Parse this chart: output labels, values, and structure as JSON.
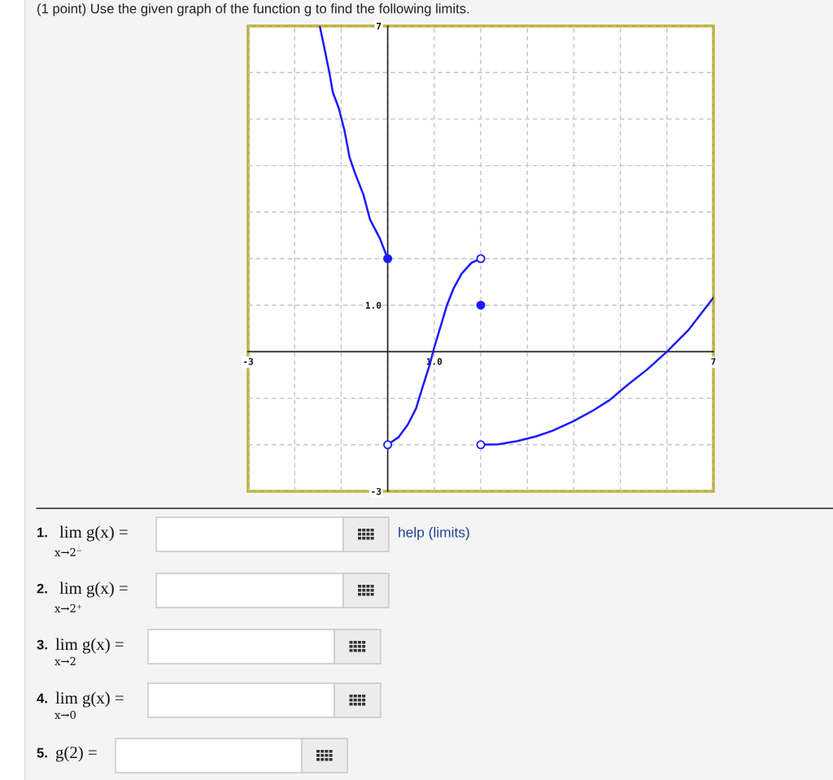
{
  "chart_data": {
    "type": "line",
    "title": "(1 point) Use the given graph of the function g to find the following limits.",
    "xlim": [
      -3,
      7
    ],
    "ylim": [
      -3,
      7
    ],
    "xticks": [
      -3,
      {
        "value": -2,
        "label": null
      },
      {
        "value": -1,
        "label": null
      },
      {
        "value": 0,
        "label": null
      },
      {
        "value": 1,
        "label": "1.0"
      },
      {
        "value": 2,
        "label": null
      },
      {
        "value": 3,
        "label": null
      },
      {
        "value": 4,
        "label": null
      },
      {
        "value": 5,
        "label": null
      },
      {
        "value": 6,
        "label": null
      },
      7
    ],
    "yticks": [
      -3,
      {
        "value": -2,
        "label": null
      },
      {
        "value": -1,
        "label": null
      },
      {
        "value": 0,
        "label": null
      },
      {
        "value": 1,
        "label": "1.0"
      },
      {
        "value": 2,
        "label": null
      },
      {
        "value": 3,
        "label": null
      },
      {
        "value": 4,
        "label": null
      },
      {
        "value": 5,
        "label": null
      },
      {
        "value": 6,
        "label": null
      },
      7
    ],
    "grid": true,
    "series": [
      {
        "color": "#1a1aff",
        "x": [
          -1.46,
          -1.37,
          -1.25,
          -1.18,
          -1.05,
          -0.93,
          -0.82,
          -0.7,
          -0.52,
          -0.38,
          -0.17,
          0
        ],
        "values": [
          7,
          6.57,
          5.98,
          5.58,
          5.23,
          4.76,
          4.18,
          3.83,
          3.37,
          2.84,
          2.44,
          2
        ]
      },
      {
        "color": "#1a1aff",
        "x": [
          0,
          0.23,
          0.43,
          0.61,
          0.75,
          0.9,
          1,
          1.13,
          1.27,
          1.42,
          1.59,
          1.8,
          2
        ],
        "values": [
          -2,
          -1.84,
          -1.57,
          -1.22,
          -0.76,
          -0.29,
          0.09,
          0.52,
          0.99,
          1.37,
          1.68,
          1.91,
          2
        ]
      },
      {
        "color": "#1a1aff",
        "x": [
          2,
          2.38,
          2.79,
          3.19,
          3.54,
          4,
          4.42,
          4.77,
          5.17,
          5.58,
          6,
          6.45,
          7
        ],
        "values": [
          -2,
          -1.99,
          -1.92,
          -1.82,
          -1.7,
          -1.49,
          -1.26,
          -1.04,
          -0.7,
          -0.38,
          0,
          0.45,
          1.16
        ]
      },
      {
        "type": "scatter",
        "color": "#1a1aff",
        "marker": "circle",
        "x": [
          0,
          2
        ],
        "values": [
          2,
          1
        ]
      },
      {
        "type": "scatter",
        "color": "#ffffff",
        "marker": "circle",
        "x": [
          0,
          2,
          2
        ],
        "values": [
          -2,
          2,
          -2
        ]
      }
    ],
    "annotations": [
      "1.",
      "lim g(x) =",
      "x→2⁻",
      "help (limits)",
      "2.",
      "lim g(x) =",
      "x→2⁺",
      "3.",
      "lim g(x) =",
      "x→2",
      "4.",
      "lim g(x) =",
      "x→0",
      "5.",
      "g(2) ="
    ]
  }
}
